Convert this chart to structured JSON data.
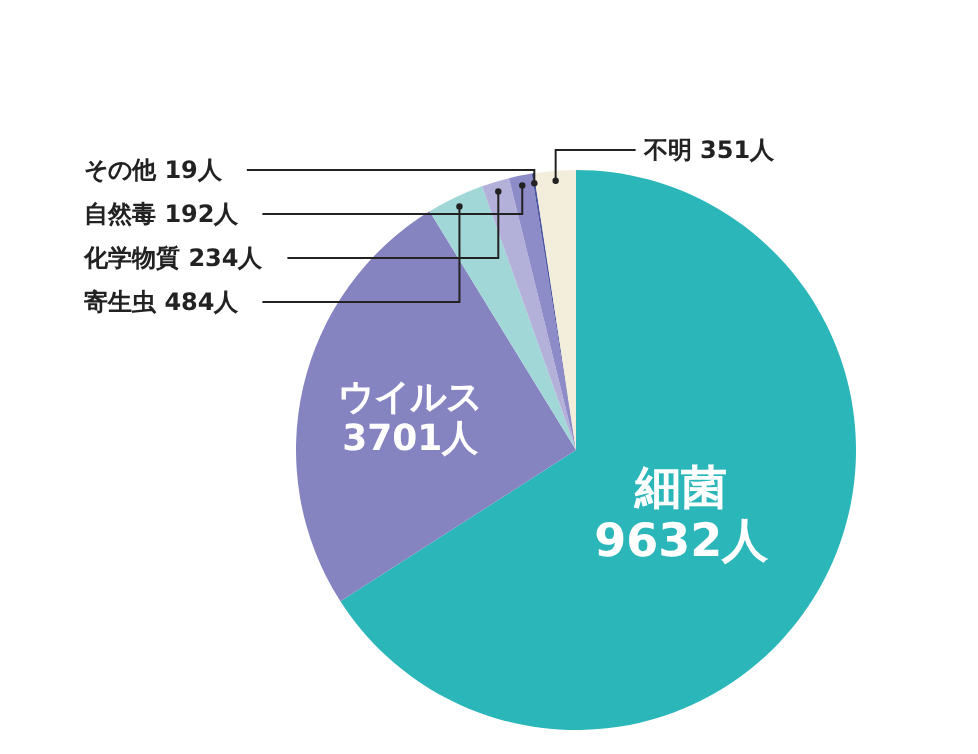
{
  "chart_data": {
    "type": "pie",
    "categories": [
      "細菌",
      "ウイルス",
      "寄生虫",
      "化学物質",
      "自然毒",
      "その他",
      "不明"
    ],
    "values": [
      9632,
      3701,
      484,
      234,
      192,
      19,
      351
    ],
    "colors": [
      "#2bb6b9",
      "#8583c0",
      "#a2d7d8",
      "#b3b0da",
      "#8e8cc8",
      "#4b55a0",
      "#f3eedb"
    ],
    "value_labels": [
      "9632人",
      "3701人",
      "484人",
      "234人",
      "192人",
      "19人",
      "351人"
    ]
  }
}
